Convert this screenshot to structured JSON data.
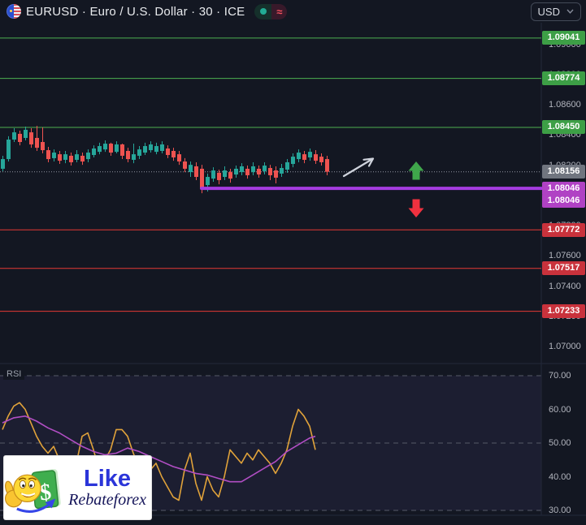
{
  "toolbar": {
    "symbol_title": "EURUSD · Euro / U.S. Dollar · 30 · ICE",
    "approx_symbol": "≈",
    "currency": "USD"
  },
  "logo": {
    "line1": "Like",
    "line2": "Rebateforex",
    "dollar_sign": "$"
  },
  "colors": {
    "background": "#131722",
    "axis_text": "#b2b5be",
    "divider": "#232839",
    "candle_up": "#26a69a",
    "candle_down": "#ef5350",
    "resistance_line": "#4caf50",
    "resistance_label_bg": "#3d9f46",
    "support_line": "#e53935",
    "support_label_bg": "#c9323c",
    "current_label_bg": "#70757f",
    "current_price_line": "#9196a1",
    "key_level_line": "#a53be0",
    "key_label_bg": "#b042c4",
    "rsi_line": "#e0a23a",
    "rsi_ma_line": "#b14ec4",
    "rsi_guide": "#565b68",
    "rsi_band_fill": "rgba(149,122,255,0.07)",
    "up_arrow": "#3fa64b",
    "down_arrow": "#f0313f",
    "trend_arrow": "#cfd3dc",
    "pill_dot": "#22ab94",
    "pill_approx": "#f7525f",
    "logo_like_color": "#2b35d9",
    "logo_brand_color": "#15155a"
  },
  "chart_data": {
    "type": "candlestick",
    "symbol": "EURUSD",
    "description": "Euro / U.S. Dollar",
    "interval": "30",
    "exchange": "ICE",
    "currency": "USD",
    "current_price": 1.08156,
    "levels": {
      "resistance": [
        1.09041,
        1.08774,
        1.0845
      ],
      "support": [
        1.07772,
        1.07517,
        1.07233
      ],
      "key_level": 1.08046
    },
    "price_scale": {
      "ticks": [
        {
          "label": "1.09000",
          "value": 1.09
        },
        {
          "label": "1.08800",
          "value": 1.088
        },
        {
          "label": "1.08600",
          "value": 1.086
        },
        {
          "label": "1.08400",
          "value": 1.084
        },
        {
          "label": "1.08200",
          "value": 1.082
        },
        {
          "label": "1.08000",
          "value": 1.08
        },
        {
          "label": "1.07800",
          "value": 1.078
        },
        {
          "label": "1.07600",
          "value": 1.076
        },
        {
          "label": "1.07400",
          "value": 1.074
        },
        {
          "label": "1.07200",
          "value": 1.072
        },
        {
          "label": "1.07000",
          "value": 1.07
        }
      ]
    },
    "price_labels": [
      {
        "label": "1.09041",
        "value": 1.09041,
        "kind": "resistance",
        "stack": 0
      },
      {
        "label": "1.08774",
        "value": 1.08774,
        "kind": "resistance",
        "stack": 0
      },
      {
        "label": "1.08450",
        "value": 1.0845,
        "kind": "resistance",
        "stack": 0
      },
      {
        "label": "1.08156",
        "value": 1.08156,
        "kind": "current",
        "stack": 0
      },
      {
        "label": "1.08046",
        "value": 1.08046,
        "kind": "key",
        "stack": 0
      },
      {
        "label": "1.08046",
        "value": 1.08046,
        "kind": "key",
        "stack": 1
      },
      {
        "label": "1.07772",
        "value": 1.07772,
        "kind": "support",
        "stack": 0
      },
      {
        "label": "1.07517",
        "value": 1.07517,
        "kind": "support",
        "stack": 0
      },
      {
        "label": "1.07233",
        "value": 1.07233,
        "kind": "support",
        "stack": 0
      }
    ],
    "candles": [
      [
        1.08176,
        1.08262,
        1.0816,
        1.0824
      ],
      [
        1.0824,
        1.08391,
        1.08224,
        1.08369
      ],
      [
        1.08369,
        1.08444,
        1.08353,
        1.08417
      ],
      [
        1.08407,
        1.08428,
        1.08331,
        1.08353
      ],
      [
        1.0838,
        1.08455,
        1.08364,
        1.08434
      ],
      [
        1.08417,
        1.08444,
        1.08315,
        1.08337
      ],
      [
        1.0838,
        1.0846,
        1.08294,
        1.08315
      ],
      [
        1.08353,
        1.0845,
        1.08278,
        1.08299
      ],
      [
        1.08299,
        1.08321,
        1.08219,
        1.0824
      ],
      [
        1.08246,
        1.08304,
        1.08224,
        1.08283
      ],
      [
        1.08272,
        1.08294,
        1.08208,
        1.08229
      ],
      [
        1.08235,
        1.08294,
        1.08213,
        1.08272
      ],
      [
        1.08262,
        1.08283,
        1.08197,
        1.08219
      ],
      [
        1.08235,
        1.08299,
        1.08219,
        1.08272
      ],
      [
        1.08262,
        1.08283,
        1.08202,
        1.08224
      ],
      [
        1.0824,
        1.08304,
        1.08219,
        1.08283
      ],
      [
        1.08267,
        1.08331,
        1.08251,
        1.0831
      ],
      [
        1.08288,
        1.08348,
        1.08272,
        1.08326
      ],
      [
        1.08304,
        1.08364,
        1.08288,
        1.08342
      ],
      [
        1.08342,
        1.08348,
        1.08262,
        1.08283
      ],
      [
        1.08288,
        1.08358,
        1.08278,
        1.08337
      ],
      [
        1.08337,
        1.08342,
        1.0824,
        1.08262
      ],
      [
        1.08294,
        1.08315,
        1.08219,
        1.0824
      ],
      [
        1.08235,
        1.08342,
        1.08213,
        1.08272
      ],
      [
        1.08262,
        1.08326,
        1.0824,
        1.08304
      ],
      [
        1.08283,
        1.08348,
        1.08267,
        1.08326
      ],
      [
        1.08299,
        1.08358,
        1.08283,
        1.08337
      ],
      [
        1.08288,
        1.08348,
        1.08272,
        1.08326
      ],
      [
        1.08294,
        1.08358,
        1.08278,
        1.08337
      ],
      [
        1.0831,
        1.08331,
        1.08246,
        1.08267
      ],
      [
        1.08294,
        1.08315,
        1.08229,
        1.08251
      ],
      [
        1.08272,
        1.08294,
        1.08202,
        1.08224
      ],
      [
        1.08224,
        1.08246,
        1.08154,
        1.08176
      ],
      [
        1.08154,
        1.08224,
        1.08122,
        1.08202
      ],
      [
        1.08192,
        1.08219,
        1.08101,
        1.08122
      ],
      [
        1.08176,
        1.08202,
        1.08014,
        1.08046
      ],
      [
        1.08068,
        1.08144,
        1.08025,
        1.08122
      ],
      [
        1.08111,
        1.08186,
        1.0809,
        1.08165
      ],
      [
        1.08149,
        1.0817,
        1.08073,
        1.08101
      ],
      [
        1.08122,
        1.08192,
        1.08101,
        1.08165
      ],
      [
        1.08154,
        1.08176,
        1.08084,
        1.08111
      ],
      [
        1.08138,
        1.08197,
        1.08117,
        1.08176
      ],
      [
        1.08154,
        1.08213,
        1.08133,
        1.08192
      ],
      [
        1.08176,
        1.08197,
        1.08111,
        1.08133
      ],
      [
        1.08154,
        1.08219,
        1.08133,
        1.08192
      ],
      [
        1.08176,
        1.08197,
        1.08117,
        1.08138
      ],
      [
        1.0816,
        1.08219,
        1.08138,
        1.08197
      ],
      [
        1.08181,
        1.08202,
        1.08101,
        1.08133
      ],
      [
        1.08165,
        1.08192,
        1.08079,
        1.08117
      ],
      [
        1.08144,
        1.08208,
        1.08122,
        1.08181
      ],
      [
        1.0817,
        1.0824,
        1.08149,
        1.08219
      ],
      [
        1.08208,
        1.08278,
        1.08186,
        1.08256
      ],
      [
        1.0824,
        1.08304,
        1.08219,
        1.08283
      ],
      [
        1.08272,
        1.08294,
        1.08213,
        1.08235
      ],
      [
        1.08251,
        1.0831,
        1.08229,
        1.08288
      ],
      [
        1.08272,
        1.08299,
        1.08208,
        1.08229
      ],
      [
        1.08256,
        1.08278,
        1.08197,
        1.08219
      ],
      [
        1.0824,
        1.08262,
        1.08133,
        1.08156
      ]
    ],
    "rsi": {
      "label": "RSI",
      "upper_band": 70,
      "middle_band": 50,
      "lower_band": 30,
      "axis_ticks": [
        {
          "label": "70.00",
          "value": 70
        },
        {
          "label": "60.00",
          "value": 60
        },
        {
          "label": "50.00",
          "value": 50
        },
        {
          "label": "40.00",
          "value": 40
        },
        {
          "label": "30.00",
          "value": 30
        }
      ],
      "line": [
        [
          3,
          54
        ],
        [
          10,
          58
        ],
        [
          17,
          61
        ],
        [
          24,
          62
        ],
        [
          31,
          60
        ],
        [
          38,
          56
        ],
        [
          45,
          52
        ],
        [
          52,
          49
        ],
        [
          59,
          47
        ],
        [
          66,
          49
        ],
        [
          73,
          45
        ],
        [
          80,
          43
        ],
        [
          87,
          40
        ],
        [
          94,
          44
        ],
        [
          101,
          52
        ],
        [
          108,
          53
        ],
        [
          115,
          48
        ],
        [
          122,
          42
        ],
        [
          129,
          45
        ],
        [
          136,
          48
        ],
        [
          143,
          54
        ],
        [
          150,
          54
        ],
        [
          157,
          52
        ],
        [
          164,
          47
        ],
        [
          171,
          43
        ],
        [
          178,
          45
        ],
        [
          185,
          42
        ],
        [
          192,
          44
        ],
        [
          199,
          40
        ],
        [
          206,
          37
        ],
        [
          213,
          34
        ],
        [
          220,
          33
        ],
        [
          227,
          42
        ],
        [
          234,
          47
        ],
        [
          241,
          38
        ],
        [
          248,
          33
        ],
        [
          255,
          40
        ],
        [
          262,
          36
        ],
        [
          269,
          34
        ],
        [
          276,
          40
        ],
        [
          283,
          48
        ],
        [
          290,
          46
        ],
        [
          297,
          44
        ],
        [
          304,
          47
        ],
        [
          311,
          45
        ],
        [
          318,
          48
        ],
        [
          325,
          46
        ],
        [
          332,
          44
        ],
        [
          339,
          41
        ],
        [
          346,
          44
        ],
        [
          353,
          48
        ],
        [
          360,
          55
        ],
        [
          367,
          60
        ],
        [
          374,
          58
        ],
        [
          381,
          55
        ],
        [
          388,
          48
        ]
      ],
      "ma": [
        [
          3,
          56
        ],
        [
          17,
          57.5
        ],
        [
          31,
          58
        ],
        [
          45,
          56.5
        ],
        [
          59,
          54.5
        ],
        [
          73,
          53
        ],
        [
          87,
          51
        ],
        [
          101,
          49
        ],
        [
          115,
          47.5
        ],
        [
          129,
          46.5
        ],
        [
          143,
          47
        ],
        [
          157,
          48.5
        ],
        [
          171,
          47.5
        ],
        [
          185,
          46
        ],
        [
          199,
          44.5
        ],
        [
          213,
          43
        ],
        [
          227,
          42
        ],
        [
          241,
          41
        ],
        [
          255,
          40.5
        ],
        [
          269,
          39.5
        ],
        [
          283,
          38.5
        ],
        [
          297,
          38.5
        ],
        [
          311,
          40.5
        ],
        [
          325,
          42.5
        ],
        [
          339,
          44.5
        ],
        [
          353,
          47.5
        ],
        [
          367,
          49.5
        ],
        [
          381,
          51.5
        ],
        [
          388,
          52
        ]
      ]
    },
    "annotations": {
      "up_arrow_marker": "green up arrow above key level",
      "down_arrow_marker": "red down arrow below key level",
      "trend_arrow_drawing": "white hand-drawn arrow pointing up-right"
    }
  }
}
